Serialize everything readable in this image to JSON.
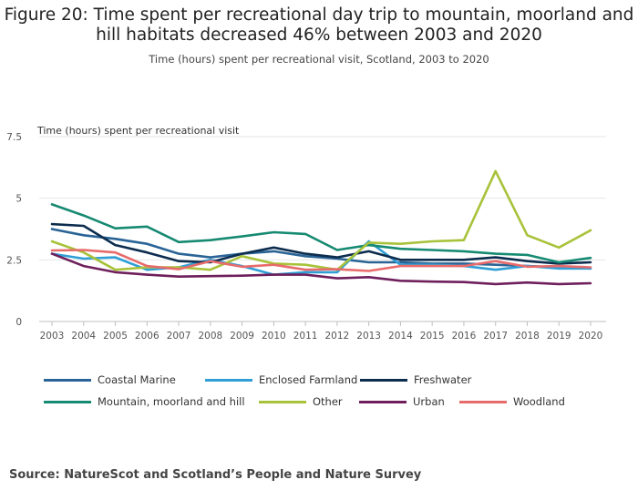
{
  "chart_data": {
    "type": "line",
    "title": "Figure 20: Time spent per recreational day trip to mountain, moorland and hill habitats decreased 46% between 2003 and 2020",
    "subtitle": "Time (hours) spent per recreational visit, Scotland, 2003 to 2020",
    "ylabel": "Time (hours) spent per recreational visit",
    "xlabel": "",
    "ylim": [
      0,
      7.5
    ],
    "yticks": [
      0,
      2.5,
      5,
      7.5
    ],
    "ytick_labels": [
      "0",
      "2.5",
      "5",
      "7.5"
    ],
    "grid": true,
    "x": [
      2003,
      2004,
      2005,
      2006,
      2007,
      2008,
      2009,
      2010,
      2011,
      2012,
      2013,
      2014,
      2015,
      2016,
      2017,
      2018,
      2019,
      2020
    ],
    "series": [
      {
        "name": "Coastal Marine",
        "color": "#2a6496",
        "values": [
          3.75,
          3.5,
          3.35,
          3.15,
          2.75,
          2.6,
          2.75,
          2.85,
          2.65,
          2.55,
          2.4,
          2.4,
          2.35,
          2.35,
          2.3,
          2.25,
          2.2,
          2.15
        ]
      },
      {
        "name": "Enclosed Farmland",
        "color": "#2f9fd6",
        "values": [
          2.75,
          2.55,
          2.6,
          2.1,
          2.2,
          2.5,
          2.25,
          1.9,
          2.0,
          2.0,
          3.25,
          2.3,
          2.3,
          2.25,
          2.1,
          2.25,
          2.15,
          2.15
        ]
      },
      {
        "name": "Freshwater",
        "color": "#0d2d4f",
        "values": [
          3.95,
          3.88,
          3.1,
          2.8,
          2.45,
          2.4,
          2.75,
          3.0,
          2.75,
          2.6,
          2.85,
          2.5,
          2.5,
          2.5,
          2.6,
          2.45,
          2.35,
          2.4
        ]
      },
      {
        "name": "Mountain, moorland and hill",
        "color": "#168a72",
        "values": [
          4.75,
          4.3,
          3.78,
          3.85,
          3.22,
          3.3,
          3.45,
          3.62,
          3.55,
          2.9,
          3.1,
          2.95,
          2.9,
          2.85,
          2.75,
          2.7,
          2.4,
          2.58
        ]
      },
      {
        "name": "Other",
        "color": "#a8c23a",
        "values": [
          3.25,
          2.8,
          2.1,
          2.2,
          2.2,
          2.1,
          2.65,
          2.35,
          2.3,
          2.1,
          3.2,
          3.15,
          3.25,
          3.3,
          6.1,
          3.5,
          3.0,
          3.7
        ]
      },
      {
        "name": "Urban",
        "color": "#6e1f5c",
        "values": [
          2.75,
          2.25,
          2.0,
          1.9,
          1.82,
          1.84,
          1.86,
          1.9,
          1.9,
          1.75,
          1.8,
          1.65,
          1.62,
          1.6,
          1.52,
          1.58,
          1.52,
          1.55
        ]
      },
      {
        "name": "Woodland",
        "color": "#e86b6b",
        "values": [
          2.88,
          2.9,
          2.8,
          2.25,
          2.12,
          2.45,
          2.22,
          2.3,
          2.1,
          2.12,
          2.05,
          2.25,
          2.25,
          2.25,
          2.45,
          2.22,
          2.25,
          2.2
        ]
      }
    ]
  },
  "source": "Source: NatureScot and Scotland’s People and Nature Survey"
}
